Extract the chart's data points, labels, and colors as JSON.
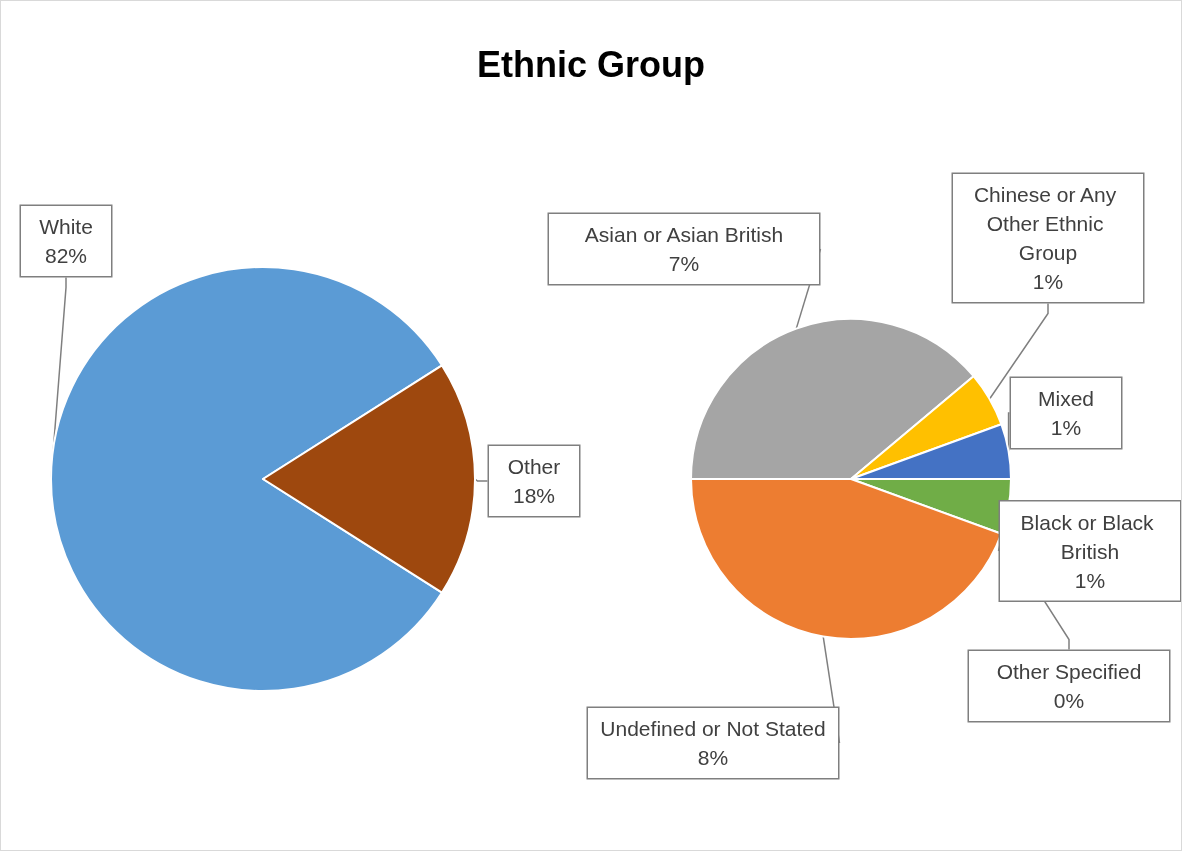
{
  "chart_data": [
    {
      "type": "pie",
      "title": "Ethnic Group",
      "categories": [
        "White",
        "Other"
      ],
      "values": [
        82,
        18
      ],
      "value_labels": [
        "82%",
        "18%"
      ],
      "colors": [
        "#5b9bd5",
        "#9e480e"
      ]
    },
    {
      "type": "pie",
      "categories": [
        "Asian or Asian British",
        "Chinese or Any Other Ethnic Group",
        "Mixed",
        "Black or Black British",
        "Other Specified",
        "Undefined or Not Stated"
      ],
      "values": [
        7,
        1,
        1,
        1,
        0,
        8
      ],
      "value_labels": [
        "7%",
        "1%",
        "1%",
        "1%",
        "0%",
        "8%"
      ],
      "colors": [
        "#a5a5a5",
        "#ffc000",
        "#4472c4",
        "#70ad47",
        "#255e91",
        "#ed7d31"
      ]
    }
  ]
}
